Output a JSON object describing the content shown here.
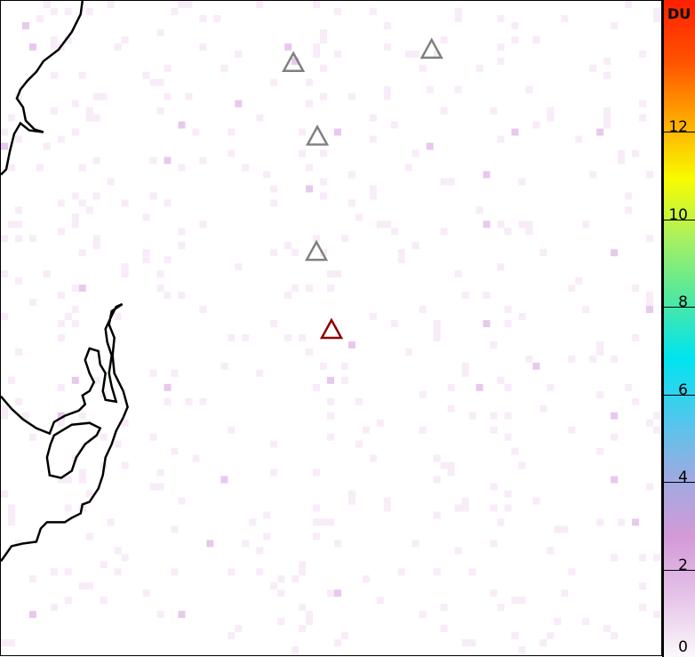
{
  "colorbar": {
    "unit": "DU",
    "ticks": [
      "0",
      "2",
      "4",
      "6",
      "8",
      "10",
      "12"
    ],
    "range": [
      0,
      15
    ],
    "colors": [
      "#fbf8fc",
      "#e6c4e8",
      "#d49ad8",
      "#9eaae2",
      "#4ec8ec",
      "#00e4f0",
      "#50e8a0",
      "#a8f060",
      "#f8fc00",
      "#ffa800",
      "#ff5000",
      "#ff2000"
    ]
  },
  "markers": {
    "volcanoes": [
      {
        "color": "#808080"
      },
      {
        "color": "#808080"
      },
      {
        "color": "#808080"
      },
      {
        "color": "#808080"
      },
      {
        "color": "#8b0000",
        "highlighted": true
      }
    ]
  }
}
